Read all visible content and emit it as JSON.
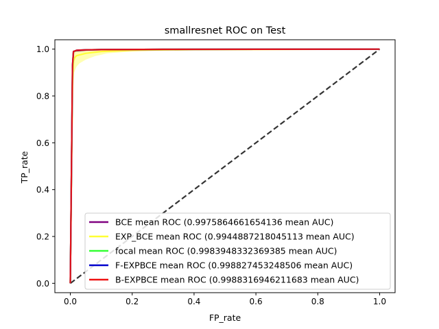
{
  "chart_data": {
    "type": "line",
    "title": "smallresnet ROC on Test",
    "xlabel": "FP_rate",
    "ylabel": "TP_rate",
    "xlim": [
      -0.05,
      1.05
    ],
    "ylim": [
      -0.04,
      1.04
    ],
    "xticks": [
      "0.0",
      "0.2",
      "0.4",
      "0.6",
      "0.8",
      "1.0"
    ],
    "yticks": [
      "0.0",
      "0.2",
      "0.4",
      "0.6",
      "0.8",
      "1.0"
    ],
    "grid": false,
    "legend_position": "lower-right",
    "diagonal": {
      "x": [
        0,
        1
      ],
      "y": [
        0,
        1
      ],
      "color": "#333333",
      "style": "dashed"
    },
    "band": {
      "color": "#ffff00",
      "upper": [
        [
          0,
          0
        ],
        [
          0.01,
          0.99
        ],
        [
          0.02,
          0.995
        ],
        [
          1.0,
          1.0
        ]
      ],
      "lower": [
        [
          0,
          0
        ],
        [
          0.01,
          0.85
        ],
        [
          0.012,
          0.9
        ],
        [
          0.02,
          0.925
        ],
        [
          0.03,
          0.94
        ],
        [
          0.05,
          0.955
        ],
        [
          0.08,
          0.97
        ],
        [
          0.12,
          0.982
        ],
        [
          0.2,
          0.99
        ],
        [
          0.3,
          0.996
        ],
        [
          0.5,
          0.999
        ],
        [
          1.0,
          1.0
        ]
      ]
    },
    "series": [
      {
        "name": "BCE mean ROC (0.9975864661654136 mean AUC)",
        "color": "#800080",
        "points": [
          [
            0,
            0
          ],
          [
            0.007,
            0.9
          ],
          [
            0.01,
            0.99
          ],
          [
            0.02,
            0.993
          ],
          [
            0.05,
            0.996
          ],
          [
            0.1,
            0.998
          ],
          [
            0.3,
            0.999
          ],
          [
            1.0,
            1.0
          ]
        ]
      },
      {
        "name": "EXP_BCE mean ROC (0.9944887218045113 mean AUC)",
        "color": "#ffff33",
        "points": [
          [
            0,
            0
          ],
          [
            0.007,
            0.85
          ],
          [
            0.01,
            0.95
          ],
          [
            0.015,
            0.965
          ],
          [
            0.02,
            0.972
          ],
          [
            0.05,
            0.982
          ],
          [
            0.1,
            0.99
          ],
          [
            0.2,
            0.995
          ],
          [
            0.4,
            0.998
          ],
          [
            1.0,
            1.0
          ]
        ]
      },
      {
        "name": "focal mean ROC (0.9983948332369385 mean AUC)",
        "color": "#33ff33",
        "points": [
          [
            0,
            0
          ],
          [
            0.007,
            0.92
          ],
          [
            0.01,
            0.99
          ],
          [
            0.02,
            0.994
          ],
          [
            0.05,
            0.997
          ],
          [
            0.1,
            0.998
          ],
          [
            0.3,
            0.999
          ],
          [
            1.0,
            1.0
          ]
        ]
      },
      {
        "name": "F-EXPBCE mean ROC (0.998827453248506 mean AUC)",
        "color": "#0000cc",
        "points": [
          [
            0,
            0
          ],
          [
            0.007,
            0.93
          ],
          [
            0.01,
            0.99
          ],
          [
            0.02,
            0.995
          ],
          [
            0.05,
            0.997
          ],
          [
            0.1,
            0.998
          ],
          [
            0.3,
            0.999
          ],
          [
            1.0,
            1.0
          ]
        ]
      },
      {
        "name": "B-EXPBCE mean ROC (0.9988316946211683 mean AUC)",
        "color": "#ee1111",
        "points": [
          [
            0,
            0
          ],
          [
            0.007,
            0.93
          ],
          [
            0.01,
            0.99
          ],
          [
            0.02,
            0.995
          ],
          [
            0.05,
            0.997
          ],
          [
            0.1,
            0.998
          ],
          [
            0.3,
            0.999
          ],
          [
            1.0,
            1.0
          ]
        ]
      }
    ]
  }
}
